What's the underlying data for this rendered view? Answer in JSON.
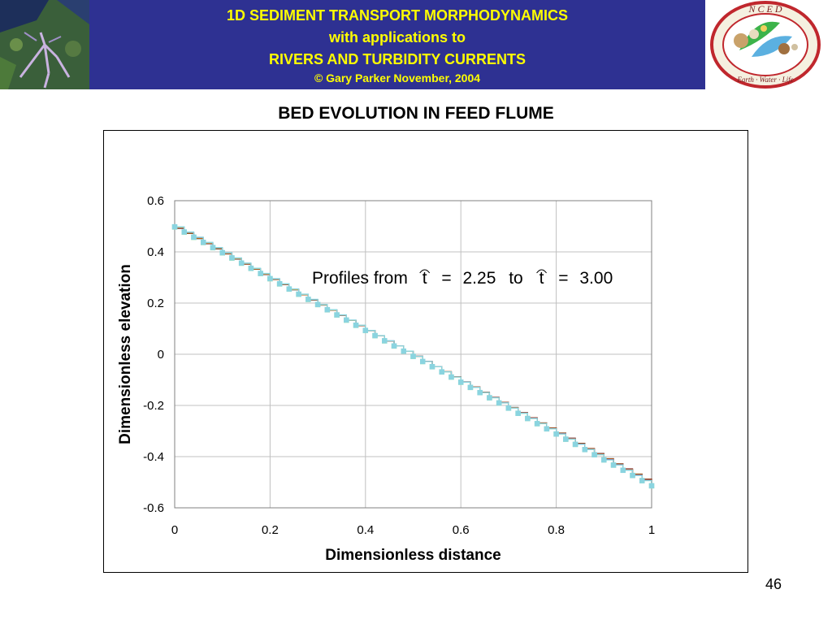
{
  "header": {
    "line1": "1D SEDIMENT TRANSPORT MORPHODYNAMICS",
    "line2": "with applications to",
    "line3": "RIVERS AND TURBIDITY CURRENTS",
    "line4": "© Gary Parker November, 2004",
    "logo_text": "N C E D",
    "logo_ring_text": "Earth · Water · Life",
    "colors": {
      "banner": "#2e3192",
      "title_text": "#ffff00",
      "logo_ring": "#c0272d"
    }
  },
  "slide_title": "BED EVOLUTION IN FEED FLUME",
  "page_number": "46",
  "chart_data": {
    "type": "line",
    "title": "",
    "xlabel": "Dimensionless distance",
    "ylabel": "Dimensionless elevation",
    "annotation": {
      "prefix": "Profiles from",
      "var": "t",
      "eq1": "=",
      "v1": "2.25",
      "mid": "to",
      "eq2": "=",
      "v2": "3.00"
    },
    "xlim": [
      0,
      1
    ],
    "ylim": [
      -0.6,
      0.6
    ],
    "xticks": [
      0,
      0.2,
      0.4,
      0.6,
      0.8,
      1
    ],
    "yticks": [
      -0.6,
      -0.4,
      -0.2,
      0,
      0.2,
      0.4,
      0.6
    ],
    "xtick_labels": [
      "0",
      "0.2",
      "0.4",
      "0.6",
      "0.8",
      "1"
    ],
    "ytick_labels": [
      "-0.6",
      "-0.4",
      "-0.2",
      "0",
      "0.2",
      "0.4",
      "0.6"
    ],
    "grid": true,
    "series": [
      {
        "color": "#000000",
        "marker": "none",
        "y0": 0.492,
        "y1": -0.508
      },
      {
        "color": "#c00000",
        "marker": "none",
        "y0": 0.493,
        "y1": -0.509
      },
      {
        "color": "#d4a017",
        "marker": "none",
        "y0": 0.494,
        "y1": -0.51
      },
      {
        "color": "#7a3da0",
        "marker": "none",
        "y0": 0.496,
        "y1": -0.512
      },
      {
        "color": "#b0e8b0",
        "marker": "square",
        "y0": 0.497,
        "y1": -0.514
      },
      {
        "color": "#8ad4e0",
        "marker": "square",
        "y0": 0.498,
        "y1": -0.514
      }
    ],
    "points": 51
  }
}
